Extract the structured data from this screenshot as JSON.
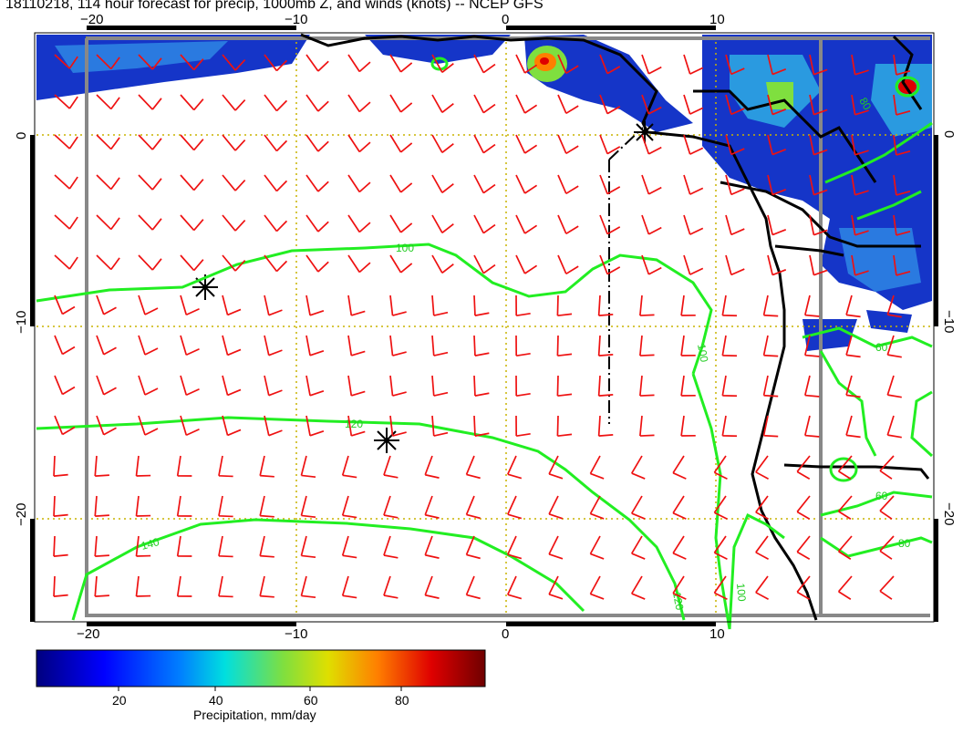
{
  "header": {
    "title": "18110218, 114 hour forecast for precip, 1000mb Z, and winds (knots) -- NCEP GFS",
    "stamp": "18110218"
  },
  "axes": {
    "x_ticks": [
      "−20",
      "−10",
      "0",
      "10"
    ],
    "y_ticks": [
      "0",
      "−10",
      "−20"
    ]
  },
  "contours": {
    "labels": [
      "100",
      "120",
      "140",
      "100",
      "120",
      "100",
      "80",
      "60",
      "60",
      "80"
    ]
  },
  "colorbar": {
    "ticks": [
      "20",
      "40",
      "60",
      "80"
    ],
    "label": "Precipitation, mm/day",
    "colors": [
      "#00007f",
      "#0000ff",
      "#007fff",
      "#00dfdf",
      "#7fdf3f",
      "#dfdf00",
      "#ff7f00",
      "#df0000",
      "#6f0000"
    ]
  },
  "styles": {
    "contour_color": "#22ee22",
    "barb_color": "#ee1111",
    "grid_color": "#c8b400",
    "title_stamp_color": "#ff00ff"
  }
}
